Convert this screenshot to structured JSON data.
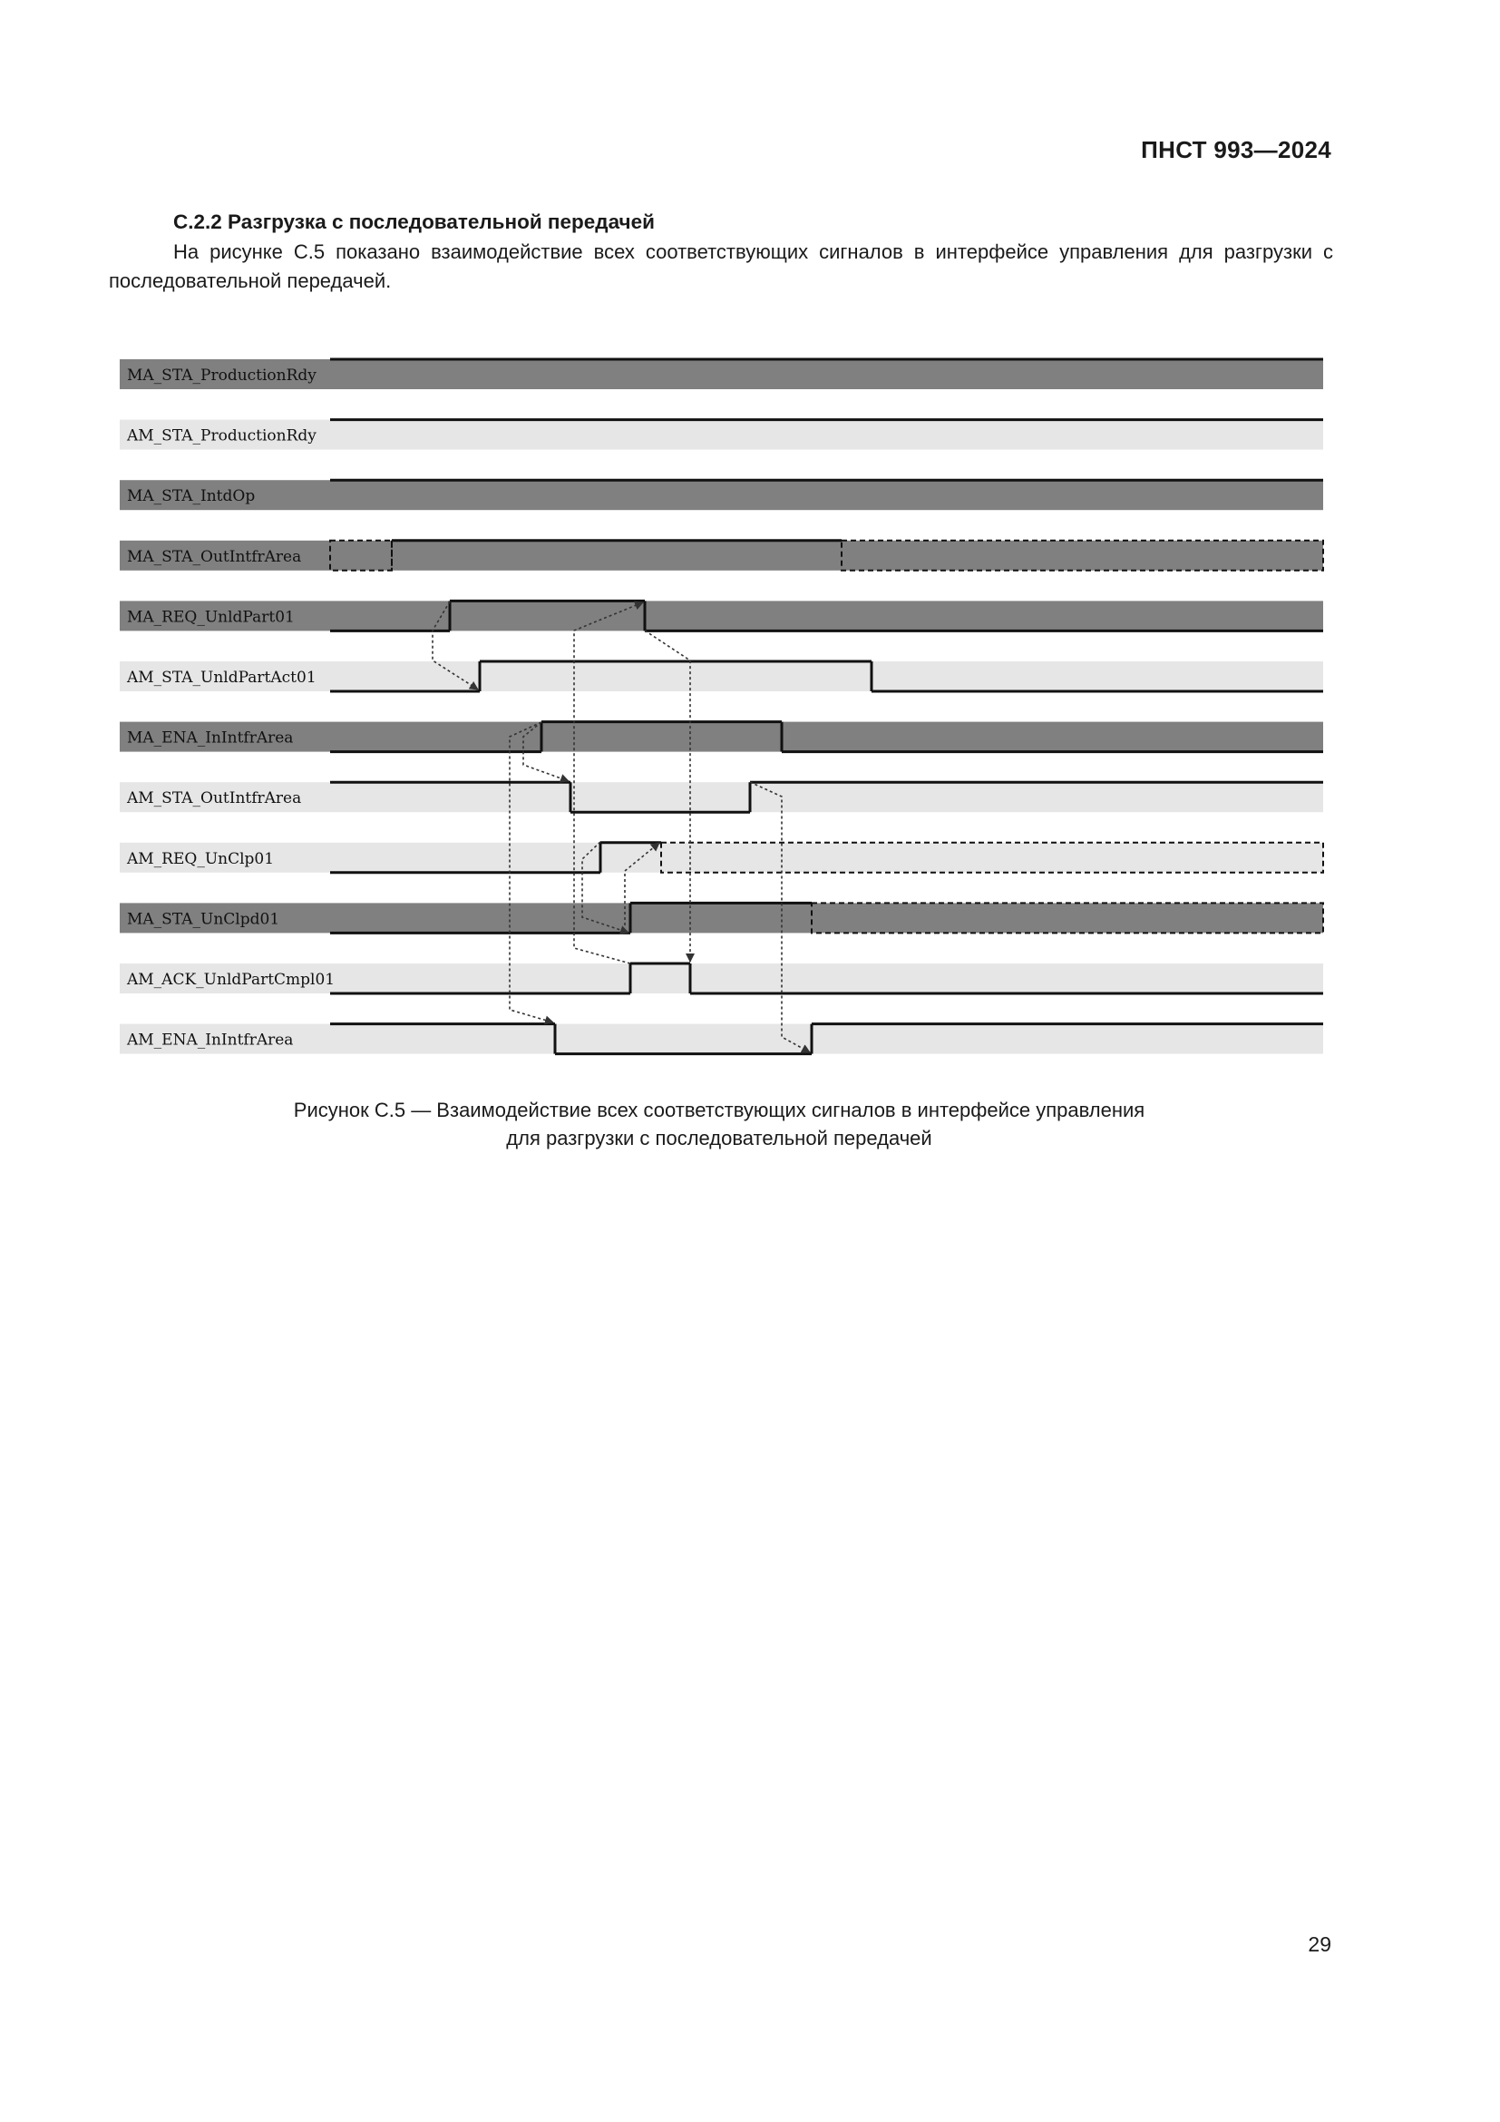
{
  "header": {
    "doc_code": "ПНСТ 993—2024"
  },
  "section": {
    "title": "С.2.2 Разгрузка с последовательной передачей",
    "paragraph": "На рисунке С.5 показано взаимодействие всех соответствующих сигналов в интерфейсе управления для разгрузки с последовательной передачей."
  },
  "chart_data": {
    "type": "timing-diagram",
    "colors": {
      "ma_row": "#808080",
      "am_row": "#e6e6e6",
      "line": "#111111"
    },
    "signals": [
      {
        "name": "MA_STA_ProductionRdy",
        "owner": "MA",
        "levels": [
          "high"
        ]
      },
      {
        "name": "AM_STA_ProductionRdy",
        "owner": "AM",
        "levels": [
          "high"
        ]
      },
      {
        "name": "MA_STA_IntdOp",
        "owner": "MA",
        "levels": [
          "high"
        ]
      },
      {
        "name": "MA_STA_OutIntfrArea",
        "owner": "MA",
        "levels": [
          "undefined",
          "high",
          "undefined"
        ]
      },
      {
        "name": "MA_REQ_UnldPart01",
        "owner": "MA",
        "levels": [
          "low",
          "high",
          "low"
        ]
      },
      {
        "name": "AM_STA_UnldPartAct01",
        "owner": "AM",
        "levels": [
          "low",
          "high",
          "low"
        ]
      },
      {
        "name": "MA_ENA_InIntfrArea",
        "owner": "MA",
        "levels": [
          "low",
          "high",
          "low"
        ]
      },
      {
        "name": "AM_STA_OutIntfrArea",
        "owner": "AM",
        "levels": [
          "high",
          "low",
          "high"
        ]
      },
      {
        "name": "AM_REQ_UnClp01",
        "owner": "AM",
        "levels": [
          "low",
          "high",
          "undefined"
        ]
      },
      {
        "name": "MA_STA_UnClpd01",
        "owner": "MA",
        "levels": [
          "low",
          "high",
          "undefined"
        ]
      },
      {
        "name": "AM_ACK_UnldPartCmpl01",
        "owner": "AM",
        "levels": [
          "low",
          "high",
          "low"
        ]
      },
      {
        "name": "AM_ENA_InIntfrArea",
        "owner": "AM",
        "levels": [
          "high",
          "low",
          "high"
        ]
      }
    ]
  },
  "caption": {
    "line1": "Рисунок С.5 — Взаимодействие всех соответствующих сигналов в интерфейсе управления",
    "line2": "для разгрузки с последовательной передачей"
  },
  "page_number": "29"
}
